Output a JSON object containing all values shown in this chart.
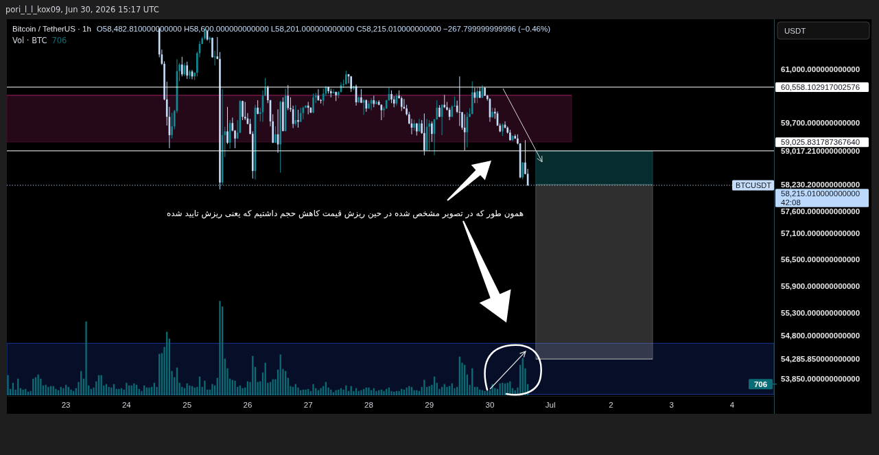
{
  "chart_data": {
    "type": "candlestick",
    "title": "Bitcoin / TetherUS · 1h",
    "subtitle": "O58,482.810000000000 H58,600.000000000000 L58,201.000000000000 C58,215.010000000000 −267.799999999996 (−0.46%)",
    "ylabel": "USDT",
    "annotations": [
      "pori_l_l_kox09, Jun 30, 2026 15:17 UTC",
      "Vol · BTC",
      "706",
      "همون طور که در تصویر مشخص شده در حین ریزش قیمت کاهش حجم داشتیم که یعنی ریزش تایید شده",
      {
        "text": "BTCUSDT",
        "y": 58215.01
      }
    ],
    "log": "y",
    "xlim": [
      "2026-06-22T00:35",
      "2026-07-04T16:35"
    ],
    "xticks": [
      {
        "value": "2026-06-23",
        "label": "23"
      },
      {
        "value": "2026-06-24",
        "label": "24"
      },
      {
        "value": "2026-06-25",
        "label": "25"
      },
      {
        "value": "2026-06-26",
        "label": "26"
      },
      {
        "value": "2026-06-27",
        "label": "27"
      },
      {
        "value": "2026-06-28",
        "label": "28"
      },
      {
        "value": "2026-06-29",
        "label": "29"
      },
      {
        "value": "2026-06-30",
        "label": "30"
      },
      {
        "value": "2026-07-01",
        "label": "Jul"
      },
      {
        "value": "2026-07-02",
        "label": "2"
      },
      {
        "value": "2026-07-03",
        "label": "3"
      },
      {
        "value": "2026-07-04",
        "label": "4"
      }
    ],
    "ylim": [
      53500,
      62235
    ],
    "yticks": [
      {
        "value": 61000,
        "label": "61,000.000000000000"
      },
      {
        "value": 59700,
        "label": "59,700.000000000000"
      },
      {
        "value": 59017.21,
        "label": "59,017.210000000000"
      },
      {
        "value": 58230.2,
        "label": "58,230.200000000000"
      },
      {
        "value": 57600,
        "label": "57,600.000000000000"
      },
      {
        "value": 57100,
        "label": "57,100.000000000000"
      },
      {
        "value": 56500,
        "label": "56,500.000000000000"
      },
      {
        "value": 55900,
        "label": "55,900.000000000000"
      },
      {
        "value": 55300,
        "label": "55,300.000000000000"
      },
      {
        "value": 54800,
        "label": "54,800.000000000000"
      },
      {
        "value": 54285.85,
        "label": "54,285.850000000000"
      },
      {
        "value": 53850,
        "label": "53,850.000000000000"
      }
    ],
    "y2lim": [
      0,
      23700
    ],
    "y2ticks": [
      {
        "value": 706,
        "label": "706"
      }
    ],
    "x": [
      "2026-06-22T01:00",
      "2026-06-22T02:00",
      "2026-06-22T03:00",
      "2026-06-22T04:00",
      "2026-06-22T05:00",
      "2026-06-22T06:00",
      "2026-06-22T07:00",
      "2026-06-22T08:00",
      "2026-06-22T09:00",
      "2026-06-22T10:00",
      "2026-06-22T11:00",
      "2026-06-22T12:00",
      "2026-06-22T13:00",
      "2026-06-22T14:00",
      "2026-06-22T15:00",
      "2026-06-22T16:00",
      "2026-06-22T17:00",
      "2026-06-22T18:00",
      "2026-06-22T19:00",
      "2026-06-22T20:00",
      "2026-06-22T21:00",
      "2026-06-22T22:00",
      "2026-06-22T23:00",
      "2026-06-23T00:00",
      "2026-06-23T01:00",
      "2026-06-23T02:00",
      "2026-06-23T03:00",
      "2026-06-23T04:00",
      "2026-06-23T05:00",
      "2026-06-23T06:00",
      "2026-06-23T07:00",
      "2026-06-23T08:00",
      "2026-06-23T09:00",
      "2026-06-23T10:00",
      "2026-06-23T11:00",
      "2026-06-23T12:00",
      "2026-06-23T13:00",
      "2026-06-23T14:00",
      "2026-06-23T15:00",
      "2026-06-23T16:00",
      "2026-06-23T17:00",
      "2026-06-23T18:00",
      "2026-06-23T19:00",
      "2026-06-23T20:00",
      "2026-06-23T21:00",
      "2026-06-23T22:00",
      "2026-06-23T23:00",
      "2026-06-24T00:00",
      "2026-06-24T01:00",
      "2026-06-24T02:00",
      "2026-06-24T03:00",
      "2026-06-24T04:00",
      "2026-06-24T05:00",
      "2026-06-24T06:00",
      "2026-06-24T07:00",
      "2026-06-24T08:00",
      "2026-06-24T09:00",
      "2026-06-24T10:00",
      "2026-06-24T11:00",
      "2026-06-24T12:00",
      "2026-06-24T13:00",
      "2026-06-24T14:00",
      "2026-06-24T15:00",
      "2026-06-24T16:00",
      "2026-06-24T17:00",
      "2026-06-24T18:00",
      "2026-06-24T19:00",
      "2026-06-24T20:00",
      "2026-06-24T21:00",
      "2026-06-24T22:00",
      "2026-06-24T23:00",
      "2026-06-25T00:00",
      "2026-06-25T01:00",
      "2026-06-25T02:00",
      "2026-06-25T03:00",
      "2026-06-25T04:00",
      "2026-06-25T05:00",
      "2026-06-25T06:00",
      "2026-06-25T07:00",
      "2026-06-25T08:00",
      "2026-06-25T09:00",
      "2026-06-25T10:00",
      "2026-06-25T11:00",
      "2026-06-25T12:00",
      "2026-06-25T13:00",
      "2026-06-25T14:00",
      "2026-06-25T15:00",
      "2026-06-25T16:00",
      "2026-06-25T17:00",
      "2026-06-25T18:00",
      "2026-06-25T19:00",
      "2026-06-25T20:00",
      "2026-06-25T21:00",
      "2026-06-25T22:00",
      "2026-06-25T23:00",
      "2026-06-26T00:00",
      "2026-06-26T01:00",
      "2026-06-26T02:00",
      "2026-06-26T03:00",
      "2026-06-26T04:00",
      "2026-06-26T05:00",
      "2026-06-26T06:00",
      "2026-06-26T07:00",
      "2026-06-26T08:00",
      "2026-06-26T09:00",
      "2026-06-26T10:00",
      "2026-06-26T11:00",
      "2026-06-26T12:00",
      "2026-06-26T13:00",
      "2026-06-26T14:00",
      "2026-06-26T15:00",
      "2026-06-26T16:00",
      "2026-06-26T17:00",
      "2026-06-26T18:00",
      "2026-06-26T19:00",
      "2026-06-26T20:00",
      "2026-06-26T21:00",
      "2026-06-26T22:00",
      "2026-06-26T23:00",
      "2026-06-27T00:00",
      "2026-06-27T01:00",
      "2026-06-27T02:00",
      "2026-06-27T03:00",
      "2026-06-27T04:00",
      "2026-06-27T05:00",
      "2026-06-27T06:00",
      "2026-06-27T07:00",
      "2026-06-27T08:00",
      "2026-06-27T09:00",
      "2026-06-27T10:00",
      "2026-06-27T11:00",
      "2026-06-27T12:00",
      "2026-06-27T13:00",
      "2026-06-27T14:00",
      "2026-06-27T15:00",
      "2026-06-27T16:00",
      "2026-06-27T17:00",
      "2026-06-27T18:00",
      "2026-06-27T19:00",
      "2026-06-27T20:00",
      "2026-06-27T21:00",
      "2026-06-27T22:00",
      "2026-06-27T23:00",
      "2026-06-28T00:00",
      "2026-06-28T01:00",
      "2026-06-28T02:00",
      "2026-06-28T03:00",
      "2026-06-28T04:00",
      "2026-06-28T05:00",
      "2026-06-28T06:00",
      "2026-06-28T07:00",
      "2026-06-28T08:00",
      "2026-06-28T09:00",
      "2026-06-28T10:00",
      "2026-06-28T11:00",
      "2026-06-28T12:00",
      "2026-06-28T13:00",
      "2026-06-28T14:00",
      "2026-06-28T15:00",
      "2026-06-28T16:00",
      "2026-06-28T17:00",
      "2026-06-28T18:00",
      "2026-06-28T19:00",
      "2026-06-28T20:00",
      "2026-06-28T21:00",
      "2026-06-28T22:00",
      "2026-06-28T23:00",
      "2026-06-29T00:00",
      "2026-06-29T01:00",
      "2026-06-29T02:00",
      "2026-06-29T03:00",
      "2026-06-29T04:00",
      "2026-06-29T05:00",
      "2026-06-29T06:00",
      "2026-06-29T07:00",
      "2026-06-29T08:00",
      "2026-06-29T09:00",
      "2026-06-29T10:00",
      "2026-06-29T11:00",
      "2026-06-29T12:00",
      "2026-06-29T13:00",
      "2026-06-29T14:00",
      "2026-06-29T15:00",
      "2026-06-29T16:00",
      "2026-06-29T17:00",
      "2026-06-29T18:00",
      "2026-06-29T19:00",
      "2026-06-29T20:00",
      "2026-06-29T21:00",
      "2026-06-29T22:00",
      "2026-06-29T23:00",
      "2026-06-30T00:00",
      "2026-06-30T01:00",
      "2026-06-30T02:00",
      "2026-06-30T03:00",
      "2026-06-30T04:00",
      "2026-06-30T05:00",
      "2026-06-30T06:00",
      "2026-06-30T07:00",
      "2026-06-30T08:00",
      "2026-06-30T09:00",
      "2026-06-30T10:00",
      "2026-06-30T11:00",
      "2026-06-30T12:00",
      "2026-06-30T13:00",
      "2026-06-30T14:00",
      "2026-06-30T15:00"
    ],
    "series": [
      {
        "type": "bar",
        "axis": "y2",
        "color": "#0a6d75",
        "values": [
          1270,
          400,
          790,
          360,
          1050,
          450,
          360,
          400,
          230,
          270,
          1050,
          1140,
          1310,
          1050,
          620,
          660,
          530,
          580,
          580,
          400,
          320,
          530,
          450,
          660,
          530,
          360,
          270,
          450,
          840,
          1530,
          1050,
          4650,
          620,
          400,
          490,
          880,
          1270,
          1270,
          620,
          710,
          530,
          490,
          710,
          400,
          400,
          450,
          360,
          790,
          620,
          620,
          750,
          660,
          400,
          270,
          620,
          490,
          490,
          530,
          790,
          530,
          2610,
          2660,
          3050,
          4000,
          3570,
          1530,
          1140,
          1750,
          790,
          530,
          450,
          750,
          620,
          580,
          490,
          530,
          1180,
          530,
          920,
          360,
          360,
          710,
          620,
          1100,
          5950,
          5600,
          2310,
          1700,
          1050,
          970,
          920,
          530,
          620,
          450,
          490,
          880,
          840,
          2480,
          1790,
          840,
          880,
          1440,
          2050,
          790,
          840,
          1010,
          1010,
          1620,
          2570,
          1660,
          1530,
          1100,
          580,
          530,
          710,
          490,
          320,
          360,
          360,
          400,
          270,
          710,
          450,
          320,
          450,
          580,
          840,
          490,
          360,
          190,
          320,
          360,
          450,
          360,
          620,
          270,
          580,
          270,
          450,
          270,
          320,
          400,
          490,
          490,
          320,
          450,
          270,
          320,
          360,
          270,
          400,
          490,
          270,
          230,
          270,
          270,
          400,
          360,
          490,
          580,
          530,
          320,
          320,
          270,
          530,
          970,
          530,
          580,
          660,
          1180,
          790,
          400,
          530,
          710,
          530,
          580,
          750,
          450,
          530,
          2440,
          2050,
          1920,
          1310,
          660,
          1700,
          530,
          530,
          360,
          320,
          270,
          270,
          320,
          710,
          450,
          400,
          750,
          790,
          750,
          790,
          880,
          450,
          320,
          490,
          1920,
          2350,
          1700,
          706
        ]
      },
      {
        "ohlc": [
          null,
          null,
          null,
          null,
          null,
          null,
          null,
          null,
          null,
          null,
          null,
          null,
          null,
          null,
          null,
          null,
          null,
          null,
          null,
          null,
          null,
          null,
          null,
          null,
          null,
          null,
          null,
          null,
          null,
          null,
          null,
          null,
          null,
          null,
          null,
          null,
          null,
          null,
          null,
          null,
          null,
          null,
          null,
          null,
          null,
          null,
          null,
          null,
          null,
          null,
          null,
          null,
          null,
          null,
          null,
          null,
          null,
          null,
          null,
          null,
          [
            62000,
            62020,
            61290,
            61360
          ],
          [
            61360,
            61480,
            61100,
            61130
          ],
          [
            61130,
            61190,
            60240,
            60260
          ],
          [
            60260,
            60690,
            59630,
            59840
          ],
          [
            59840,
            60080,
            59090,
            59400
          ],
          [
            59400,
            59940,
            59320,
            59610
          ],
          [
            59610,
            60010,
            59540,
            59980
          ],
          [
            59980,
            61240,
            59930,
            60950
          ],
          [
            60950,
            61150,
            60700,
            61110
          ],
          [
            61110,
            61300,
            60820,
            60870
          ],
          [
            60870,
            61150,
            60830,
            61090
          ],
          [
            61090,
            61180,
            60760,
            60840
          ],
          [
            60840,
            60980,
            60760,
            60940
          ],
          [
            60940,
            60980,
            60750,
            60820
          ],
          [
            60820,
            60920,
            60730,
            60910
          ],
          [
            60910,
            61430,
            60820,
            61390
          ],
          [
            61390,
            61690,
            61290,
            61620
          ],
          [
            61620,
            61800,
            61610,
            61760
          ],
          [
            61760,
            62000,
            61720,
            61930
          ],
          [
            61930,
            61970,
            61700,
            61730
          ],
          [
            61730,
            61810,
            61640,
            61770
          ],
          [
            61770,
            61780,
            61280,
            61290
          ],
          [
            61290,
            61450,
            61090,
            61310
          ],
          [
            61310,
            61790,
            61240,
            61250
          ],
          [
            61250,
            61420,
            58120,
            58280
          ],
          [
            58280,
            60510,
            58220,
            59400
          ],
          [
            59400,
            59600,
            58880,
            59490
          ],
          [
            59490,
            60080,
            59190,
            59220
          ],
          [
            59220,
            59760,
            59080,
            59690
          ],
          [
            59690,
            59820,
            59490,
            59510
          ],
          [
            59510,
            59520,
            59090,
            59320
          ],
          [
            59320,
            59760,
            59310,
            59460
          ],
          [
            59460,
            60240,
            59450,
            60220
          ],
          [
            60220,
            60230,
            59760,
            59840
          ],
          [
            59840,
            60200,
            59760,
            59800
          ],
          [
            59800,
            59930,
            59660,
            59670
          ],
          [
            59670,
            59790,
            59420,
            59430
          ],
          [
            59430,
            59490,
            58370,
            58550
          ],
          [
            58550,
            60130,
            58350,
            60060
          ],
          [
            60060,
            60240,
            59900,
            59910
          ],
          [
            59910,
            60060,
            59730,
            59950
          ],
          [
            59950,
            60480,
            59720,
            60350
          ],
          [
            60350,
            60780,
            60340,
            60550
          ],
          [
            60550,
            60590,
            60170,
            60240
          ],
          [
            60240,
            60250,
            59610,
            59730
          ],
          [
            59730,
            59900,
            59210,
            59220
          ],
          [
            59220,
            59610,
            59210,
            59420
          ],
          [
            59420,
            60020,
            58980,
            59180
          ],
          [
            59180,
            60230,
            58510,
            60200
          ],
          [
            60200,
            60310,
            59490,
            59500
          ],
          [
            59500,
            60520,
            59490,
            60350
          ],
          [
            60350,
            60610,
            60000,
            60050
          ],
          [
            60050,
            60310,
            59960,
            60020
          ],
          [
            60020,
            60110,
            59570,
            59670
          ],
          [
            59670,
            60120,
            59630,
            59760
          ],
          [
            59760,
            60010,
            59580,
            59720
          ],
          [
            59720,
            60060,
            59710,
            59930
          ],
          [
            59930,
            60090,
            59780,
            60060
          ],
          [
            60060,
            60120,
            60050,
            60110
          ],
          [
            60110,
            60200,
            59900,
            60060
          ],
          [
            60060,
            60070,
            59930,
            59940
          ],
          [
            59940,
            60400,
            59930,
            60310
          ],
          [
            60310,
            60420,
            60170,
            60350
          ],
          [
            60350,
            60510,
            60230,
            60240
          ],
          [
            60240,
            60270,
            60160,
            60230
          ],
          [
            60230,
            60520,
            60110,
            60400
          ],
          [
            60400,
            60590,
            60340,
            60560
          ],
          [
            60560,
            60570,
            60400,
            60460
          ],
          [
            60460,
            60520,
            60310,
            60410
          ],
          [
            60410,
            60510,
            60400,
            60440
          ],
          [
            60440,
            60450,
            60220,
            60360
          ],
          [
            60360,
            60460,
            60290,
            60440
          ],
          [
            60440,
            60680,
            60430,
            60610
          ],
          [
            60610,
            60740,
            60540,
            60630
          ],
          [
            60630,
            60960,
            60620,
            60870
          ],
          [
            60870,
            60880,
            60650,
            60820
          ],
          [
            60820,
            60830,
            60440,
            60520
          ],
          [
            60520,
            60590,
            60480,
            60580
          ],
          [
            60580,
            60620,
            60110,
            60190
          ],
          [
            60190,
            60330,
            60180,
            60310
          ],
          [
            60310,
            60510,
            60170,
            60180
          ],
          [
            60180,
            60270,
            59890,
            60240
          ],
          [
            60240,
            60260,
            59960,
            60040
          ],
          [
            60040,
            60230,
            60030,
            60160
          ],
          [
            60160,
            60290,
            60000,
            60240
          ],
          [
            60240,
            60350,
            60070,
            60150
          ],
          [
            60150,
            60230,
            60140,
            60200
          ],
          [
            60200,
            60240,
            60120,
            60130
          ],
          [
            60130,
            60140,
            59760,
            60000
          ],
          [
            60000,
            60090,
            59830,
            60040
          ],
          [
            60040,
            60250,
            60030,
            60240
          ],
          [
            60240,
            60550,
            60230,
            60390
          ],
          [
            60390,
            60480,
            60170,
            60260
          ],
          [
            60260,
            60340,
            60070,
            60160
          ],
          [
            60160,
            60400,
            60110,
            60350
          ],
          [
            60350,
            60480,
            60280,
            60290
          ],
          [
            60290,
            60330,
            59980,
            60080
          ],
          [
            60080,
            60270,
            60030,
            60040
          ],
          [
            60040,
            60130,
            59870,
            59900
          ],
          [
            59900,
            59960,
            59660,
            59680
          ],
          [
            59680,
            59790,
            59420,
            59580
          ],
          [
            59580,
            59770,
            59510,
            59680
          ],
          [
            59680,
            59690,
            59390,
            59490
          ],
          [
            59490,
            59790,
            59480,
            59680
          ],
          [
            59680,
            59760,
            59430,
            59450
          ],
          [
            59450,
            59920,
            58920,
            59040
          ],
          [
            59040,
            59790,
            59030,
            59600
          ],
          [
            59600,
            59760,
            59020,
            59680
          ],
          [
            59680,
            59730,
            59240,
            59430
          ],
          [
            59430,
            59790,
            58920,
            59780
          ],
          [
            59780,
            60240,
            59770,
            60060
          ],
          [
            60060,
            60120,
            59830,
            59840
          ],
          [
            59840,
            60140,
            59400,
            60130
          ],
          [
            60130,
            60370,
            60050,
            60070
          ],
          [
            60070,
            60200,
            59990,
            60010
          ],
          [
            60010,
            60060,
            59760,
            59840
          ],
          [
            59840,
            60120,
            59830,
            60090
          ],
          [
            60090,
            60330,
            60080,
            60110
          ],
          [
            60110,
            60230,
            59930,
            59960
          ],
          [
            59960,
            60820,
            59620,
            59950
          ],
          [
            59950,
            59960,
            59530,
            59580
          ],
          [
            59580,
            59900,
            59040,
            59470
          ],
          [
            59470,
            59950,
            59110,
            59840
          ],
          [
            59840,
            60050,
            59830,
            59910
          ],
          [
            59910,
            60700,
            59900,
            60430
          ],
          [
            60430,
            60540,
            60170,
            60300
          ],
          [
            60300,
            60550,
            60170,
            60460
          ],
          [
            60460,
            60560,
            60290,
            60300
          ],
          [
            60300,
            60610,
            60290,
            60540
          ],
          [
            60540,
            60560,
            60340,
            60350
          ],
          [
            60350,
            60370,
            60230,
            60270
          ],
          [
            60270,
            60290,
            59720,
            59830
          ],
          [
            59830,
            60060,
            59820,
            59960
          ],
          [
            59960,
            60050,
            59790,
            59920
          ],
          [
            59920,
            59970,
            59620,
            59630
          ],
          [
            59630,
            59680,
            59470,
            59490
          ],
          [
            59490,
            59680,
            59380,
            59650
          ],
          [
            59650,
            59730,
            59560,
            59580
          ],
          [
            59580,
            59610,
            59440,
            59460
          ],
          [
            59460,
            59530,
            59270,
            59280
          ],
          [
            59280,
            59400,
            59260,
            59380
          ],
          [
            59380,
            59420,
            59310,
            59320
          ],
          [
            59320,
            59420,
            59180,
            59200
          ],
          [
            59200,
            59210,
            58380,
            58400
          ],
          [
            58400,
            58760,
            58350,
            58750
          ],
          [
            58750,
            59280,
            58470,
            58480
          ],
          [
            58482.81,
            58600,
            58201,
            58215.01
          ]
        ],
        "colors": [
          null,
          null,
          null,
          null,
          null,
          null,
          null,
          null,
          null,
          null,
          null,
          null,
          null,
          null,
          null,
          null,
          null,
          null,
          null,
          null,
          null,
          null,
          null,
          null,
          null,
          null,
          null,
          null,
          null,
          null,
          null,
          null,
          null,
          null,
          null,
          null,
          null,
          null,
          null,
          null,
          null,
          null,
          null,
          null,
          null,
          null,
          null,
          null,
          null,
          null,
          null,
          null,
          null,
          null,
          null,
          null,
          null,
          null,
          null,
          null,
          "#c5ddf8",
          "#c5ddf8",
          "#c5ddf8",
          "#c5ddf8",
          "#c5ddf8",
          "#0f8b96",
          "#0f8b96",
          "#0f8b96",
          "#0f8b96",
          "#c5ddf8",
          "#0f8b96",
          "#c5ddf8",
          "#0f8b96",
          "#c5ddf8",
          "#0f8b96",
          "#0f8b96",
          "#0f8b96",
          "#0f8b96",
          "#0f8b96",
          "#c5ddf8",
          "#0f8b96",
          "#c5ddf8",
          "#0f8b96",
          "#c5ddf8",
          "#c5ddf8",
          "#0f8b96",
          "#0f8b96",
          "#c5ddf8",
          "#0f8b96",
          "#c5ddf8",
          "#c5ddf8",
          "#0f8b96",
          "#0f8b96",
          "#c5ddf8",
          "#c5ddf8",
          "#c5ddf8",
          "#c5ddf8",
          "#c5ddf8",
          "#0f8b96",
          "#c5ddf8",
          "#0f8b96",
          "#0f8b96",
          "#0f8b96",
          "#c5ddf8",
          "#c5ddf8",
          "#c5ddf8",
          "#0f8b96",
          "#c5ddf8",
          "#0f8b96",
          "#c5ddf8",
          "#0f8b96",
          "#c5ddf8",
          "#c5ddf8",
          "#c5ddf8",
          "#0f8b96",
          "#c5ddf8",
          "#0f8b96",
          "#0f8b96",
          "#0f8b96",
          "#c5ddf8",
          "#c5ddf8",
          "#0f8b96",
          "#0f8b96",
          "#c5ddf8",
          "#c5ddf8",
          "#0f8b96",
          "#0f8b96",
          "#c5ddf8",
          "#c5ddf8",
          "#0f8b96",
          "#c5ddf8",
          "#0f8b96",
          "#0f8b96",
          "#0f8b96",
          "#0f8b96",
          "#c5ddf8",
          "#c5ddf8",
          "#0f8b96",
          "#c5ddf8",
          "#0f8b96",
          "#c5ddf8",
          "#0f8b96",
          "#c5ddf8",
          "#0f8b96",
          "#0f8b96",
          "#c5ddf8",
          "#0f8b96",
          "#c5ddf8",
          "#c5ddf8",
          "#0f8b96",
          "#0f8b96",
          "#0f8b96",
          "#c5ddf8",
          "#c5ddf8",
          "#0f8b96",
          "#c5ddf8",
          "#c5ddf8",
          "#c5ddf8",
          "#c5ddf8",
          "#c5ddf8",
          "#c5ddf8",
          "#0f8b96",
          "#c5ddf8",
          "#0f8b96",
          "#c5ddf8",
          "#c5ddf8",
          "#0f8b96",
          "#0f8b96",
          "#c5ddf8",
          "#0f8b96",
          "#0f8b96",
          "#c5ddf8",
          "#0f8b96",
          "#c5ddf8",
          "#c5ddf8",
          "#c5ddf8",
          "#0f8b96",
          "#0f8b96",
          "#c5ddf8",
          "#c5ddf8",
          "#c5ddf8",
          "#c5ddf8",
          "#0f8b96",
          "#0f8b96",
          "#0f8b96",
          "#c5ddf8",
          "#0f8b96",
          "#c5ddf8",
          "#0f8b96",
          "#c5ddf8",
          "#c5ddf8",
          "#c5ddf8",
          "#0f8b96",
          "#c5ddf8",
          "#c5ddf8",
          "#c5ddf8",
          "#0f8b96",
          "#c5ddf8",
          "#c5ddf8",
          "#c5ddf8",
          "#0f8b96",
          "#c5ddf8",
          "#c5ddf8",
          "#c5ddf8",
          "#0f8b96",
          "#c5ddf8",
          "#c5ddf8"
        ]
      },
      {
        "type": "line",
        "x": [
          "2026-06-22T00:35",
          "2026-07-01T08:25"
        ],
        "values": [
          60360,
          60360
        ],
        "lower": [
          59235,
          59235
        ],
        "upper": [
          60360,
          60360
        ],
        "color": "#8a1f55"
      },
      {
        "type": "line",
        "x": [
          "2026-06-30T18:10",
          "2026-07-02T16:30"
        ],
        "values": [
          null,
          null
        ],
        "lower": [
          58230.2,
          58230.2
        ],
        "upper": [
          59017.21,
          59017.21
        ],
        "color": "#1a9ea6"
      },
      {
        "type": "line",
        "x": [
          "2026-06-30T18:10",
          "2026-07-02T16:30"
        ],
        "values": [
          54285.85,
          54285.85
        ],
        "lower": [
          54285.85,
          54285.85
        ],
        "upper": [
          58230.2,
          58230.2
        ],
        "color": "#a8a8a8"
      }
    ],
    "ref_lines": [
      {
        "axis": "y",
        "value": 60558.10291700258,
        "label": "60,558.102917002576",
        "color": "#ffffff",
        "line_style": "solid"
      },
      {
        "axis": "y",
        "value": 59025.83178736764,
        "label": "59,025.831787367640",
        "color": "#ffffff",
        "line_style": "solid"
      },
      {
        "axis": "y",
        "value": 58215.01,
        "label": "58,215.010000000000\n42:08",
        "color": "#bbd9fb",
        "line_style": "dotted"
      }
    ],
    "bands": [
      {
        "axis": "y",
        "from": 53520,
        "to": 54630,
        "color": "#1e40b0"
      }
    ]
  }
}
